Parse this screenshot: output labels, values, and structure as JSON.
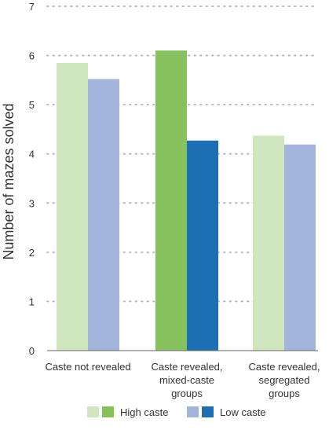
{
  "chart_data": {
    "type": "bar",
    "ylabel": "Number of mazes solved",
    "xlabel": "",
    "ylim": [
      0,
      7
    ],
    "yticks": [
      0,
      1,
      2,
      3,
      4,
      5,
      6,
      7
    ],
    "grid": "dotted horizontal",
    "categories": [
      [
        "Caste not revealed"
      ],
      [
        "Caste revealed,",
        "mixed-caste",
        "groups"
      ],
      [
        "Caste revealed,",
        "segregated",
        "groups"
      ]
    ],
    "series": [
      {
        "name": "High caste",
        "values": [
          5.85,
          6.1,
          4.37
        ]
      },
      {
        "name": "Low caste",
        "values": [
          5.52,
          4.27,
          4.19
        ]
      }
    ],
    "bar_colors": [
      [
        "#cfe6bf",
        "#a3b5da"
      ],
      [
        "#86c15d",
        "#1d6fb3"
      ],
      [
        "#cfe6bf",
        "#a3b5da"
      ]
    ],
    "legend": {
      "position": "bottom",
      "items": [
        {
          "label": "High caste",
          "swatches": [
            "#cfe6bf",
            "#86c15d"
          ]
        },
        {
          "label": "Low caste",
          "swatches": [
            "#a3b5da",
            "#1d6fb3"
          ]
        }
      ]
    }
  }
}
